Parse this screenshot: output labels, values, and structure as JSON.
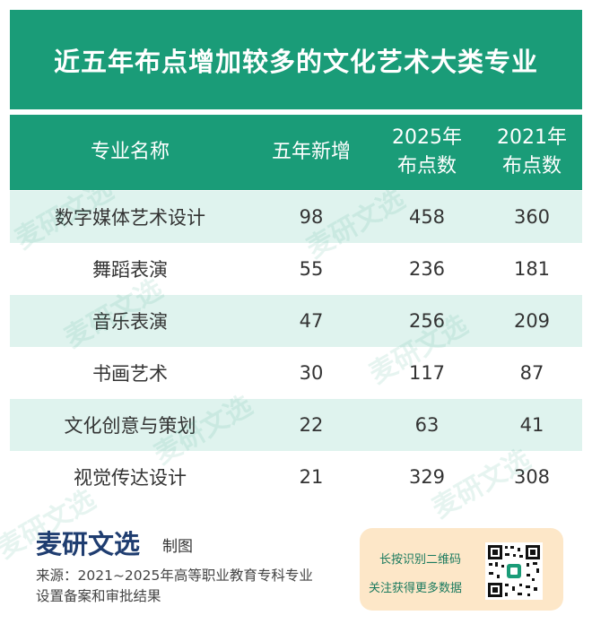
{
  "title": "近五年布点增加较多的文化艺术大类专业",
  "header": {
    "col1": "专业名称",
    "col2": "五年新增",
    "col3_line1": "2025年",
    "col3_line2": "布点数",
    "col4_line1": "2021年",
    "col4_line2": "布点数"
  },
  "rows": [
    {
      "name": "数字媒体艺术设计",
      "added": "98",
      "y2025": "458",
      "y2021": "360"
    },
    {
      "name": "舞蹈表演",
      "added": "55",
      "y2025": "236",
      "y2021": "181"
    },
    {
      "name": "音乐表演",
      "added": "47",
      "y2025": "256",
      "y2021": "209"
    },
    {
      "name": "书画艺术",
      "added": "30",
      "y2025": "117",
      "y2021": "87"
    },
    {
      "name": "文化创意与策划",
      "added": "22",
      "y2025": "63",
      "y2021": "41"
    },
    {
      "name": "视觉传达设计",
      "added": "21",
      "y2025": "329",
      "y2021": "308"
    }
  ],
  "watermark": "麦研文选",
  "footer": {
    "brand": "麦研文选",
    "brand_sub": "制图",
    "source": "来源：2021~2025年高等职业教育专科专业设置备案和审批结果",
    "qr_line1": "长按识别二维码",
    "qr_line2": "关注获得更多数据",
    "qr_icon": "qr-code-icon"
  },
  "colors": {
    "accent": "#1a9c78",
    "row_stripe": "#dff3ee",
    "brand": "#1f3d70",
    "qr_box": "#fde7c8"
  }
}
